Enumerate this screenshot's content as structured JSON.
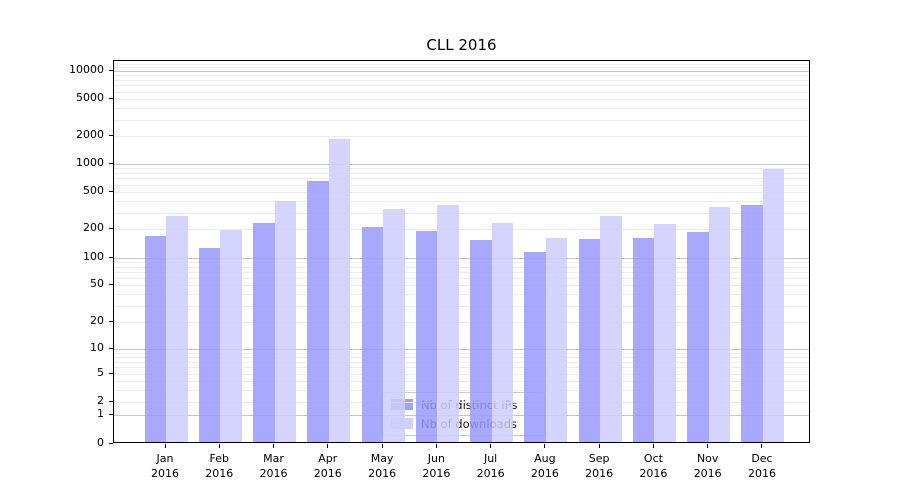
{
  "chart_data": {
    "type": "bar",
    "title": "CLL 2016",
    "months": [
      "Jan",
      "Feb",
      "Mar",
      "Apr",
      "May",
      "Jun",
      "Jul",
      "Aug",
      "Sep",
      "Oct",
      "Nov",
      "Dec"
    ],
    "year": "2016",
    "categories": [
      "Jan 2016",
      "Feb 2016",
      "Mar 2016",
      "Apr 2016",
      "May 2016",
      "Jun 2016",
      "Jul 2016",
      "Aug 2016",
      "Sep 2016",
      "Oct 2016",
      "Nov 2016",
      "Dec 2016"
    ],
    "series": [
      {
        "name": "Nb of distinct IPs",
        "color": "#9999ff",
        "values": [
          170,
          128,
          232,
          656,
          210,
          191,
          155,
          115,
          158,
          161,
          186,
          363
        ]
      },
      {
        "name": "Nb of downloads",
        "color": "#ccccff",
        "values": [
          275,
          197,
          400,
          1860,
          330,
          362,
          232,
          163,
          276,
          226,
          345,
          884
        ]
      }
    ],
    "yscale": "symlog",
    "yticks": [
      0,
      1,
      2,
      5,
      10,
      20,
      50,
      100,
      200,
      500,
      1000,
      2000,
      5000,
      10000
    ],
    "ylim": [
      0,
      12800
    ],
    "grid": {
      "orientation": "horizontal",
      "major_color": "#c6c6c6",
      "minor_color": "#ededed"
    },
    "axis_color": "#000000",
    "legend_position": "lower center inside plot"
  }
}
